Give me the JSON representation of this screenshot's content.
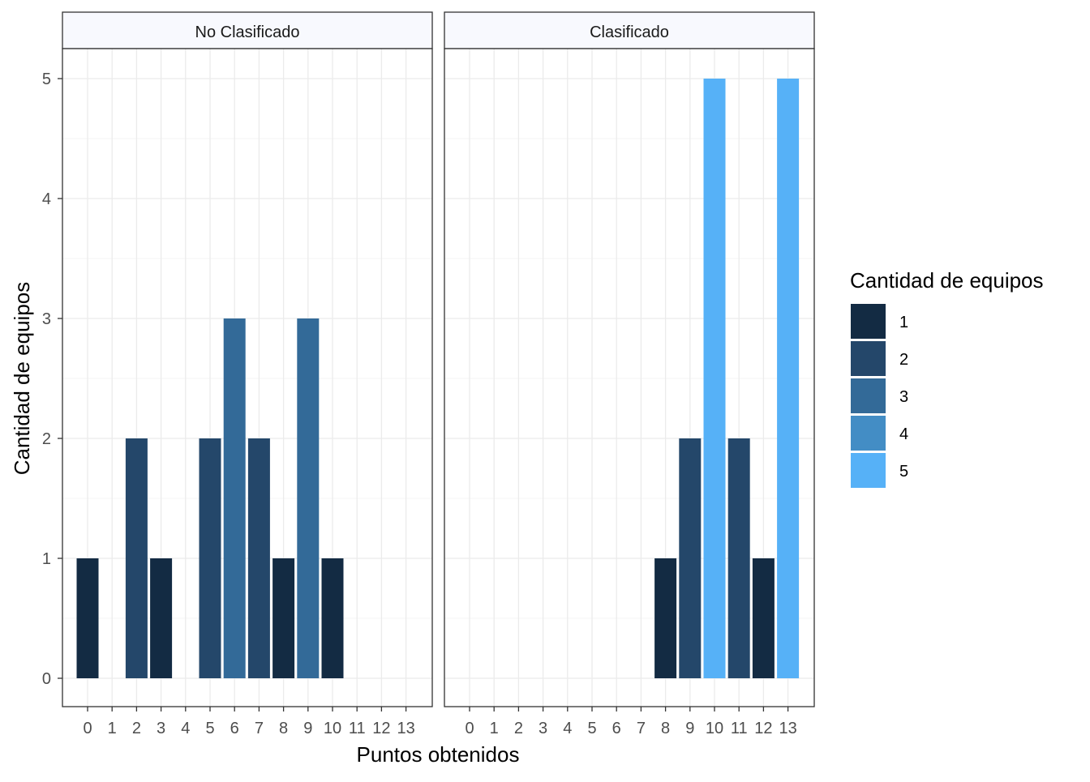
{
  "chart_data": {
    "type": "bar",
    "xlabel": "Puntos obtenidos",
    "ylabel": "Cantidad de equipos",
    "categories": [
      "0",
      "1",
      "2",
      "3",
      "4",
      "5",
      "6",
      "7",
      "8",
      "9",
      "10",
      "11",
      "12",
      "13"
    ],
    "ylim": [
      0,
      5
    ],
    "y_ticks": [
      "0",
      "1",
      "2",
      "3",
      "4",
      "5"
    ],
    "grid": true,
    "legend": {
      "title": "Cantidad de equipos",
      "position": "right",
      "entries": [
        {
          "label": "1",
          "color": "#132B43"
        },
        {
          "label": "2",
          "color": "#24476A"
        },
        {
          "label": "3",
          "color": "#336A98"
        },
        {
          "label": "4",
          "color": "#438DC5"
        },
        {
          "label": "5",
          "color": "#56B1F7"
        }
      ]
    },
    "panels": [
      {
        "name": "No Clasificado",
        "values": [
          1,
          0,
          2,
          1,
          0,
          2,
          3,
          2,
          1,
          3,
          1,
          0,
          0,
          0
        ]
      },
      {
        "name": "Clasificado",
        "values": [
          0,
          0,
          0,
          0,
          0,
          0,
          0,
          0,
          1,
          2,
          5,
          2,
          1,
          5
        ]
      }
    ]
  }
}
